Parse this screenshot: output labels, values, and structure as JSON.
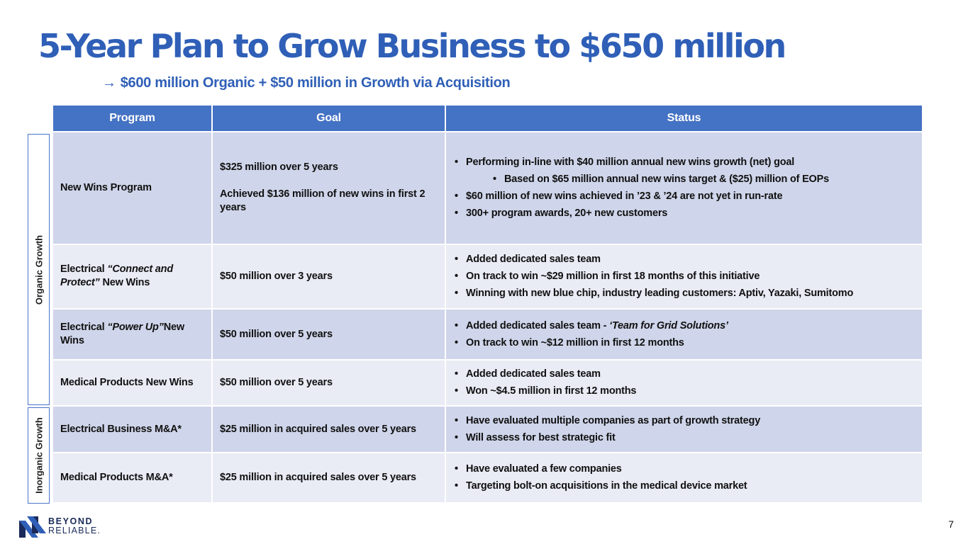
{
  "title": "5-Year Plan to Grow Business to $650 million",
  "subtitle": "$600 million Organic + $50 million in Growth via Acquisition",
  "side_labels": {
    "organic": "Organic Growth",
    "inorganic": "Inorganic Growth"
  },
  "table": {
    "headers": [
      "Program",
      "Goal",
      "Status"
    ],
    "rows": [
      {
        "program": "New Wins Program",
        "goal_line1": "$325 million over 5 years",
        "goal_line2": "Achieved $136 million of new wins in first 2 years",
        "status": [
          "Performing in-line with $40 million annual new wins growth (net) goal",
          "Based on $65 million annual new wins target & ($25) million of EOPs",
          "$60 million of new wins achieved in ’23 & ’24 are not yet in run-rate",
          "300+ program awards, 20+ new customers"
        ]
      },
      {
        "program_prefix": "Electrical ",
        "program_italic": "“Connect and Protect”",
        "program_suffix": " New Wins",
        "goal": "$50 million over 3 years",
        "status": [
          "Added dedicated sales team",
          "On track to win ~$29 million in first 18 months of this initiative",
          "Winning with new blue chip, industry leading customers: Aptiv, Yazaki, Sumitomo"
        ]
      },
      {
        "program_prefix": "Electrical ",
        "program_italic": "“Power Up”",
        "program_suffix": "New Wins",
        "goal": "$50 million over 5 years",
        "status_0_prefix": "Added dedicated sales team - ",
        "status_0_italic": "‘Team for Grid Solutions’",
        "status": [
          "On track to win ~$12 million in first 12 months"
        ]
      },
      {
        "program": "Medical Products New Wins",
        "goal": "$50 million over 5 years",
        "status": [
          "Added dedicated sales team",
          "Won ~$4.5 million in first 12 months"
        ]
      },
      {
        "program": "Electrical Business M&A*",
        "goal": "$25 million in acquired sales over 5 years",
        "status": [
          "Have evaluated multiple companies as part of growth strategy",
          "Will assess for best strategic fit"
        ]
      },
      {
        "program": "Medical Products M&A*",
        "goal": "$25 million in acquired sales over 5 years",
        "status": [
          "Have evaluated a few companies",
          "Targeting bolt-on acquisitions in the medical device market"
        ]
      }
    ]
  },
  "logo": {
    "line1": "BEYOND",
    "line2": "RELIABLE."
  },
  "page_number": "7",
  "colors": {
    "brand_blue": "#2f5fb7",
    "header_bg": "#4472c4",
    "row_dark": "#cfd5ea",
    "row_light": "#e9ebf5"
  }
}
